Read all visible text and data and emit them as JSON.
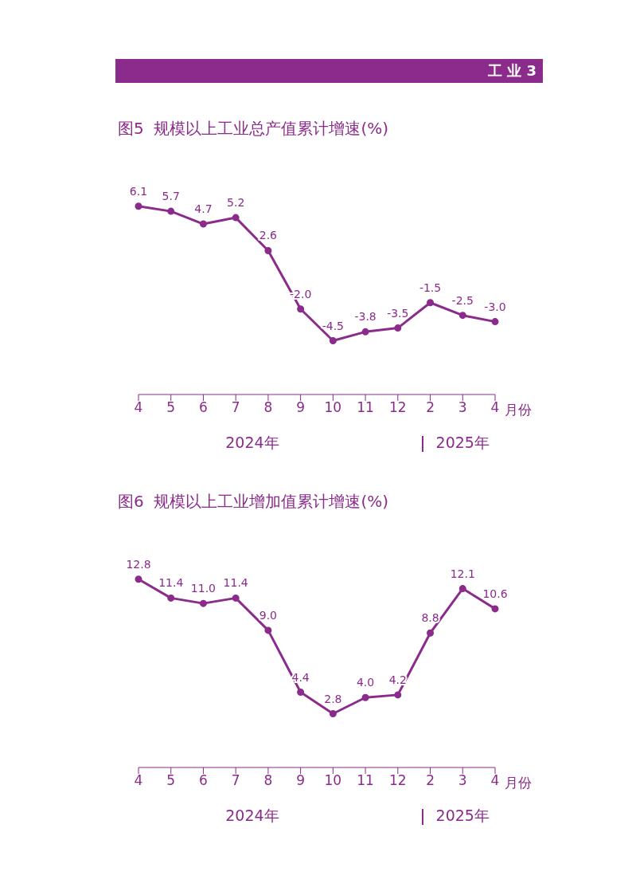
{
  "chart_data": [
    {
      "type": "other",
      "title": "工 业 3",
      "color": "#8b2b8b"
    },
    {
      "type": "line",
      "title": "图5  规模以上工业总产值累计增速(%)",
      "xlabel": "月份",
      "categories": [
        "4",
        "5",
        "6",
        "7",
        "8",
        "9",
        "10",
        "11",
        "12",
        "2",
        "3",
        "4"
      ],
      "values": [
        6.1,
        5.7,
        4.7,
        5.2,
        2.6,
        -2.0,
        -4.5,
        -3.8,
        -3.5,
        -1.5,
        -2.5,
        -3.0
      ],
      "value_labels": [
        "6.1",
        "5.7",
        "4.7",
        "5.2",
        "2.6",
        "-2.0",
        "-4.5",
        "-3.8",
        "-3.5",
        "-1.5",
        "-2.5",
        "-3.0"
      ],
      "color": "#8b2b8b",
      "marker": "circle",
      "line_style": "solid",
      "grid": false,
      "legend": false,
      "annotations": [
        "2024年",
        "2025年"
      ]
    },
    {
      "type": "line",
      "title": "图6  规模以上工业增加值累计增速(%)",
      "xlabel": "月份",
      "categories": [
        "4",
        "5",
        "6",
        "7",
        "8",
        "9",
        "10",
        "11",
        "12",
        "2",
        "3",
        "4"
      ],
      "values": [
        12.8,
        11.4,
        11.0,
        11.4,
        9.0,
        4.4,
        2.8,
        4.0,
        4.2,
        8.8,
        12.1,
        10.6
      ],
      "value_labels": [
        "12.8",
        "11.4",
        "11.0",
        "11.4",
        "9.0",
        "4.4",
        "2.8",
        "4.0",
        "4.2",
        "8.8",
        "12.1",
        "10.6"
      ],
      "color": "#8b2b8b",
      "marker": "circle",
      "line_style": "solid",
      "grid": false,
      "legend": false,
      "annotations": [
        "2024年",
        "2025年"
      ]
    }
  ]
}
